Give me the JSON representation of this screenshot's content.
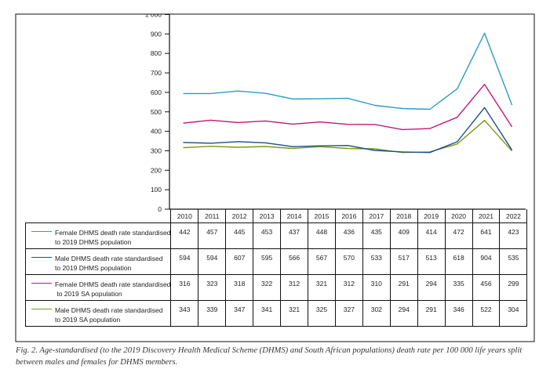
{
  "chart_data": {
    "type": "line",
    "x": [
      2010,
      2011,
      2012,
      2013,
      2014,
      2015,
      2016,
      2017,
      2018,
      2019,
      2020,
      2021,
      2022
    ],
    "ylim": [
      0,
      1000
    ],
    "yticks": [
      "0",
      "100",
      "200",
      "300",
      "400",
      "500",
      "600",
      "700",
      "800",
      "900",
      "1 000"
    ],
    "grid": false,
    "legend_placement": "table below chart",
    "series": [
      {
        "name": "Female DHMS death rate standardised to 2019 DHMS population",
        "name_lines": [
          "Female DHMS death rate standardised",
          "to 2019 DHMS population"
        ],
        "legend_color": "#2e9cc4",
        "line_color": "#c4167a",
        "values": [
          442,
          457,
          445,
          453,
          437,
          448,
          436,
          435,
          409,
          414,
          472,
          641,
          423
        ]
      },
      {
        "name": "Male DHMS death rate standardised to 2019 DHMS population",
        "name_lines": [
          "Male DHMS death rate standardised",
          "to 2019 DHMS population"
        ],
        "legend_color": "#1b4f8c",
        "line_color": "#2e9cc4",
        "values": [
          594,
          594,
          607,
          595,
          566,
          567,
          570,
          533,
          517,
          513,
          618,
          904,
          535
        ]
      },
      {
        "name": "Female DHMS death rate standardised to 2019 SA population",
        "name_lines": [
          "Female DHMS death rate standardised",
          " to 2019 SA population"
        ],
        "legend_color": "#c4167a",
        "line_color": "#7d9a18",
        "values": [
          316,
          323,
          318,
          322,
          312,
          321,
          312,
          310,
          291,
          294,
          335,
          456,
          299
        ]
      },
      {
        "name": "Male DHMS death rate standardised to 2019 SA population",
        "name_lines": [
          "Male DHMS death rate standardised",
          "to 2019 SA population"
        ],
        "legend_color": "#7d9a18",
        "line_color": "#1b4f8c",
        "values": [
          343,
          339,
          347,
          341,
          321,
          325,
          327,
          302,
          294,
          291,
          346,
          522,
          304
        ]
      }
    ]
  },
  "caption": "Fig. 2. Age-standardised (to the 2019 Discovery Health Medical Scheme (DHMS) and South African populations) death rate per 100 000 life years split between males and females for DHMS members."
}
